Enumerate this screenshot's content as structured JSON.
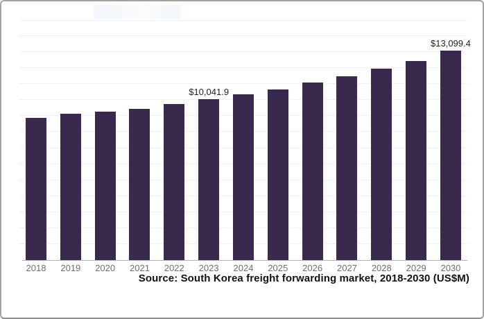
{
  "chart_data": {
    "type": "bar",
    "title": "",
    "categories": [
      "2018",
      "2019",
      "2020",
      "2021",
      "2022",
      "2023",
      "2024",
      "2025",
      "2026",
      "2027",
      "2028",
      "2029",
      "2030"
    ],
    "values": [
      8890,
      9130,
      9280,
      9450,
      9750,
      10041.9,
      10350,
      10680,
      11090,
      11470,
      11950,
      12440,
      13099.4
    ],
    "point_labels": [
      "",
      "",
      "",
      "",
      "",
      "$10,041.9",
      "",
      "",
      "",
      "",
      "",
      "",
      "$13,099.4"
    ],
    "xlabel": "",
    "ylabel": "",
    "ylim": [
      0,
      15000
    ],
    "gridline_step": 1000,
    "grid": true,
    "legend": false,
    "bar_color": "#392a4d",
    "axis_color": "#b0b0b0",
    "grid_color": "#f0f0f3",
    "tick_label_color": "#6e6e6e",
    "value_label_color": "#222222",
    "source_note": "Source: South Korea freight forwarding market, 2018-2030 (US$M)"
  }
}
